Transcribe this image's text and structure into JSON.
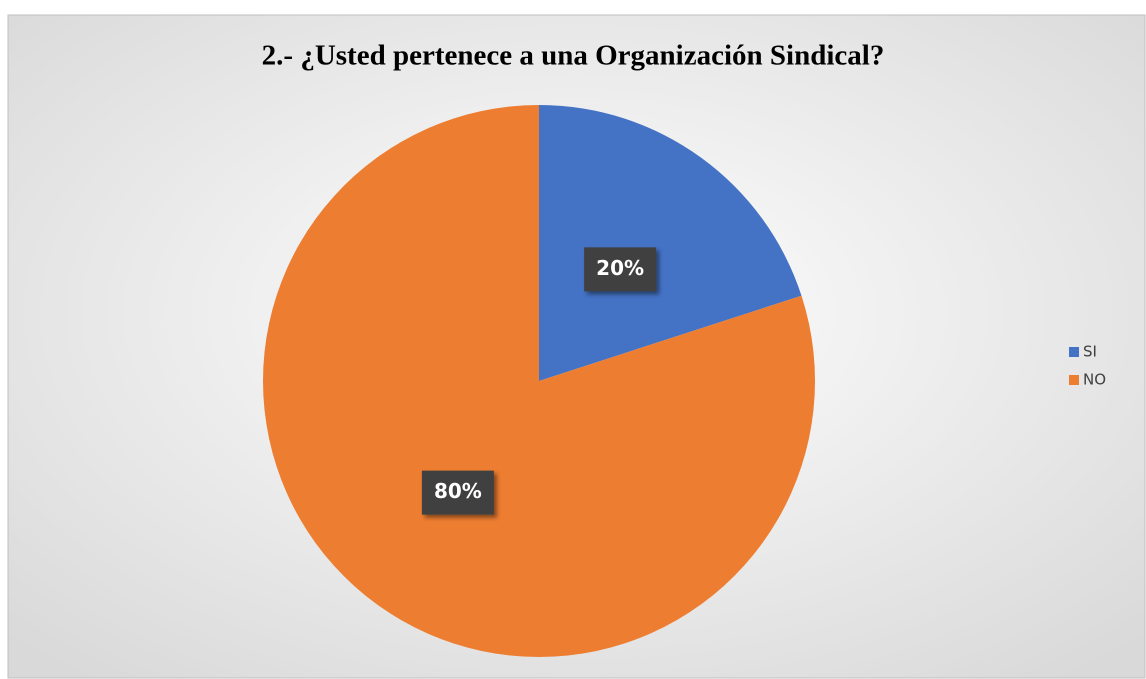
{
  "chart_data": {
    "type": "pie",
    "title": "2.- ¿Usted pertenece a una Organización Sindical?",
    "categories": [
      "SI",
      "NO"
    ],
    "values": [
      20,
      80
    ],
    "value_labels": [
      "20%",
      "80%"
    ],
    "colors": [
      "#4472c4",
      "#ed7d31"
    ],
    "legend": "right"
  }
}
